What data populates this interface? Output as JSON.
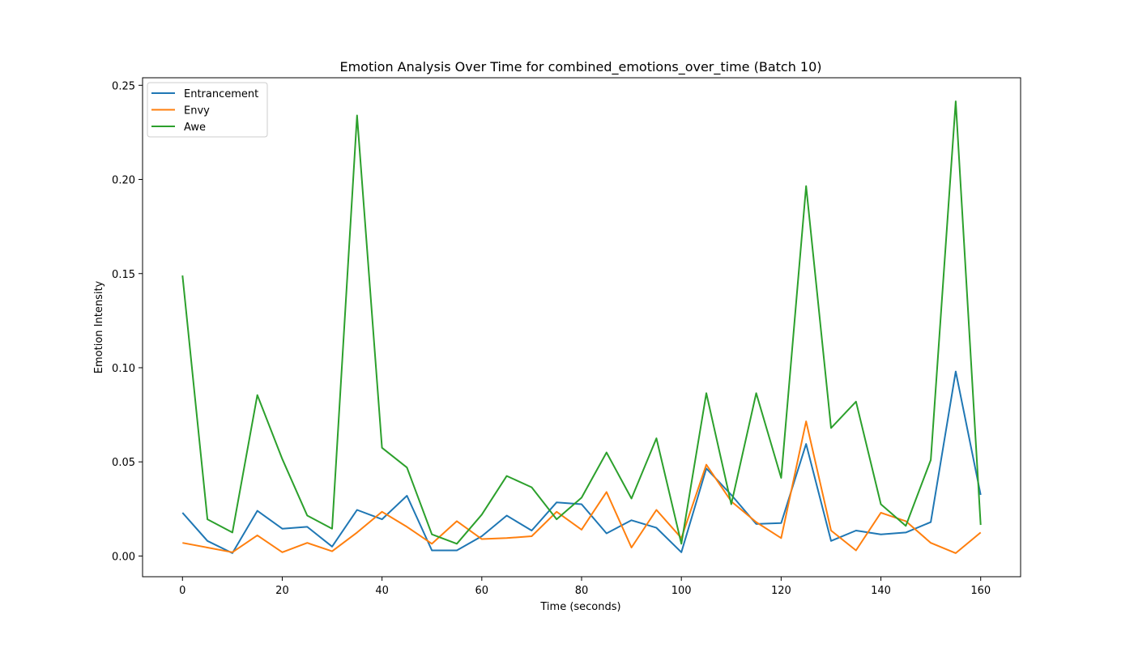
{
  "chart_data": {
    "type": "line",
    "title": "Emotion Analysis Over Time for combined_emotions_over_time (Batch 10)",
    "xlabel": "Time (seconds)",
    "ylabel": "Emotion Intensity",
    "xlim": [
      -8,
      168
    ],
    "ylim": [
      -0.011,
      0.254
    ],
    "xticks": [
      0,
      20,
      40,
      60,
      80,
      100,
      120,
      140,
      160
    ],
    "xtick_labels": [
      "0",
      "20",
      "40",
      "60",
      "80",
      "100",
      "120",
      "140",
      "160"
    ],
    "yticks": [
      0.0,
      0.05,
      0.1,
      0.15,
      0.2,
      0.25
    ],
    "ytick_labels": [
      "0.00",
      "0.05",
      "0.10",
      "0.15",
      "0.20",
      "0.25"
    ],
    "grid": false,
    "legend_position": "upper-left",
    "x": [
      0,
      5,
      10,
      15,
      20,
      25,
      30,
      35,
      40,
      45,
      50,
      55,
      60,
      65,
      70,
      75,
      80,
      85,
      90,
      95,
      100,
      105,
      110,
      115,
      120,
      125,
      130,
      135,
      140,
      145,
      150,
      155,
      160
    ],
    "series": [
      {
        "name": "Entrancement",
        "color": "#1f77b4",
        "values": [
          0.023,
          0.008,
          0.0015,
          0.024,
          0.0145,
          0.0155,
          0.005,
          0.0245,
          0.0195,
          0.032,
          0.003,
          0.003,
          0.0105,
          0.0215,
          0.0135,
          0.0285,
          0.0275,
          0.012,
          0.019,
          0.015,
          0.002,
          0.0465,
          0.0325,
          0.017,
          0.0175,
          0.0595,
          0.008,
          0.0135,
          0.0115,
          0.0125,
          0.018,
          0.098,
          0.0325
        ]
      },
      {
        "name": "Envy",
        "color": "#ff7f0e",
        "values": [
          0.007,
          0.0045,
          0.002,
          0.011,
          0.002,
          0.007,
          0.0025,
          0.0125,
          0.0235,
          0.0155,
          0.0065,
          0.0185,
          0.009,
          0.0095,
          0.0105,
          0.0235,
          0.014,
          0.034,
          0.0045,
          0.0245,
          0.0095,
          0.0485,
          0.029,
          0.018,
          0.0095,
          0.0715,
          0.0135,
          0.003,
          0.023,
          0.0185,
          0.007,
          0.0015,
          0.0125
        ]
      },
      {
        "name": "Awe",
        "color": "#2ca02c",
        "values": [
          0.149,
          0.0195,
          0.0125,
          0.0855,
          0.0515,
          0.0215,
          0.0145,
          0.234,
          0.0575,
          0.047,
          0.0115,
          0.0065,
          0.022,
          0.0425,
          0.0365,
          0.0195,
          0.031,
          0.055,
          0.0305,
          0.0625,
          0.0065,
          0.0865,
          0.0275,
          0.0865,
          0.0415,
          0.1965,
          0.068,
          0.082,
          0.0275,
          0.016,
          0.051,
          0.2415,
          0.0165
        ]
      }
    ]
  }
}
